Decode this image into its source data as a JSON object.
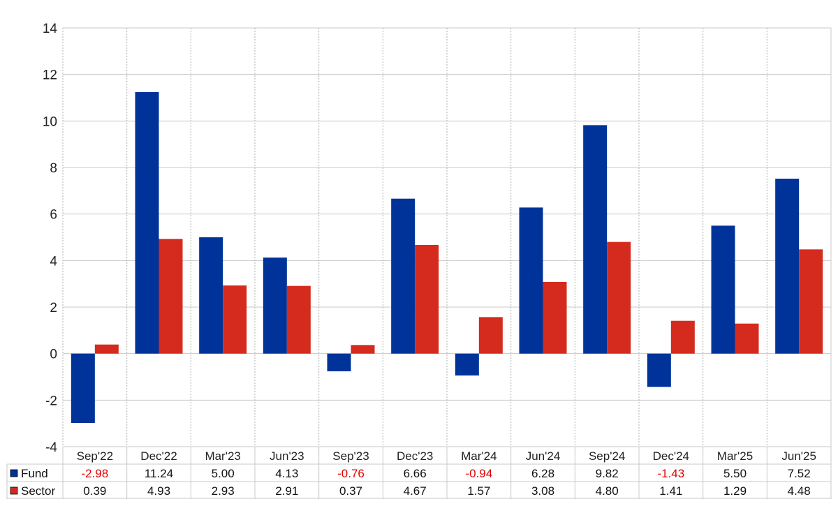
{
  "chart_data": {
    "type": "bar",
    "categories": [
      "Sep'22",
      "Dec'22",
      "Mar'23",
      "Jun'23",
      "Sep'23",
      "Dec'23",
      "Mar'24",
      "Jun'24",
      "Sep'24",
      "Dec'24",
      "Mar'25",
      "Jun'25"
    ],
    "series": [
      {
        "name": "Fund",
        "color": "#003399",
        "values": [
          -2.98,
          11.24,
          5.0,
          4.13,
          -0.76,
          6.66,
          -0.94,
          6.28,
          9.82,
          -1.43,
          5.5,
          7.52
        ],
        "labels": [
          "-2.98",
          "11.24",
          "5.00",
          "4.13",
          "-0.76",
          "6.66",
          "-0.94",
          "6.28",
          "9.82",
          "-1.43",
          "5.50",
          "7.52"
        ]
      },
      {
        "name": "Sector",
        "color": "#d52b1e",
        "values": [
          0.39,
          4.93,
          2.93,
          2.91,
          0.37,
          4.67,
          1.57,
          3.08,
          4.8,
          1.41,
          1.29,
          4.48
        ],
        "labels": [
          "0.39",
          "4.93",
          "2.93",
          "2.91",
          "0.37",
          "4.67",
          "1.57",
          "3.08",
          "4.80",
          "1.41",
          "1.29",
          "4.48"
        ]
      }
    ],
    "y_ticks": [
      "14",
      "12",
      "10",
      "8",
      "6",
      "4",
      "2",
      "0",
      "-2",
      "-4"
    ],
    "ylim": [
      -4,
      14
    ],
    "grid": true,
    "legend": "data-table-below",
    "negative_label_color": "#e00000"
  }
}
